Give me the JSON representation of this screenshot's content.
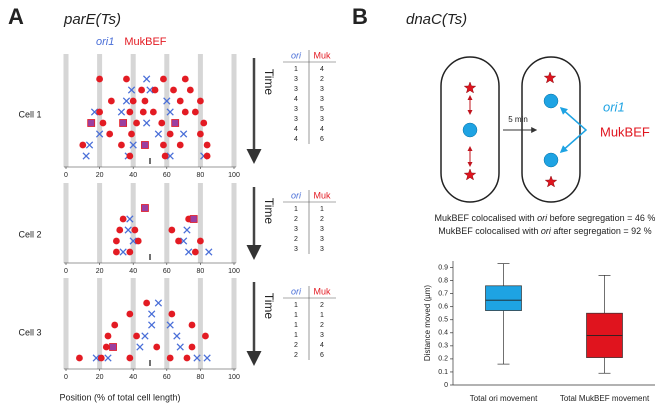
{
  "panels": [
    {
      "label": "A",
      "title": "parE(Ts)"
    },
    {
      "label": "B",
      "title": "dnaC(Ts)"
    }
  ],
  "diagram": {
    "interval": "5 min",
    "ori_label": "ori1",
    "muk_label": "MukBEF"
  },
  "stats": [
    {
      "parts": [
        "MukBEF colocalised with ",
        "ori",
        " before segregation = 46 %"
      ]
    },
    {
      "parts": [
        "MukBEF colocalised with ",
        "ori",
        " after segregation = 92 %"
      ]
    }
  ],
  "chart_data": [
    {
      "type": "scatter",
      "title": "Cell 1",
      "time_label": "Time",
      "xlim": [
        0,
        100
      ],
      "xticks": [
        0,
        20,
        40,
        60,
        80,
        100
      ],
      "ylim": [
        0,
        9
      ],
      "y_reversed": true,
      "grid": true,
      "table": {
        "columns": [
          "ori",
          "Muk"
        ],
        "rows": [
          [
            1,
            4
          ],
          [
            3,
            2
          ],
          [
            3,
            3
          ],
          [
            4,
            3
          ],
          [
            3,
            5
          ],
          [
            3,
            3
          ],
          [
            4,
            4
          ],
          [
            4,
            6
          ]
        ]
      },
      "series": [
        {
          "name": "ori1",
          "color": "#4a6fd8",
          "marker": "x",
          "x": [
            48,
            39,
            50,
            36,
            60,
            17,
            33,
            62,
            48,
            20,
            55,
            70,
            14,
            40,
            12,
            37,
            62,
            82
          ],
          "values": [
            1,
            2,
            2,
            3,
            3,
            4,
            4,
            4,
            5,
            6,
            6,
            6,
            7,
            7,
            8,
            8,
            8,
            8
          ]
        },
        {
          "name": "MukBEF",
          "color": "#e31b23",
          "marker": "circle",
          "x": [
            20,
            36,
            58,
            71,
            45,
            53,
            64,
            74,
            27,
            40,
            47,
            68,
            80,
            20,
            38,
            46,
            52,
            71,
            77,
            22,
            42,
            57,
            82,
            26,
            39,
            62,
            80,
            10,
            33,
            58,
            68,
            84,
            38,
            59,
            84
          ],
          "values": [
            1,
            1,
            1,
            1,
            2,
            2,
            2,
            2,
            3,
            3,
            3,
            3,
            3,
            4,
            4,
            4,
            4,
            4,
            4,
            5,
            5,
            5,
            5,
            6,
            6,
            6,
            6,
            7,
            7,
            7,
            7,
            7,
            8,
            8,
            8
          ]
        },
        {
          "color": "#9b3fa0",
          "marker": "square",
          "x": [
            15,
            34,
            65,
            47
          ],
          "values": [
            5,
            5,
            5,
            7
          ]
        }
      ]
    },
    {
      "type": "scatter",
      "title": "Cell 2",
      "time_label": "Time",
      "xlim": [
        0,
        100
      ],
      "xticks": [
        0,
        20,
        40,
        60,
        80,
        100
      ],
      "ylim": [
        0,
        6
      ],
      "y_reversed": true,
      "grid": true,
      "table": {
        "columns": [
          "ori",
          "Muk"
        ],
        "rows": [
          [
            1,
            1
          ],
          [
            2,
            2
          ],
          [
            3,
            3
          ],
          [
            2,
            3
          ],
          [
            3,
            3
          ]
        ]
      },
      "series": [
        {
          "color": "#4a6fd8",
          "marker": "x",
          "x": [
            38,
            37,
            72,
            40,
            70,
            34,
            73,
            85
          ],
          "values": [
            2,
            3,
            3,
            4,
            4,
            5,
            5,
            5
          ]
        },
        {
          "color": "#e31b23",
          "marker": "circle",
          "x": [
            34,
            73,
            32,
            41,
            63,
            30,
            43,
            67,
            80,
            30,
            38,
            77
          ],
          "values": [
            2,
            2,
            3,
            3,
            3,
            4,
            4,
            4,
            4,
            5,
            5,
            5
          ]
        },
        {
          "color": "#9b3fa0",
          "marker": "square",
          "x": [
            47,
            76
          ],
          "values": [
            1,
            2
          ]
        }
      ]
    },
    {
      "type": "scatter",
      "title": "Cell 3",
      "time_label": "Time",
      "xlabel": "Position (% of total cell length)",
      "xlim": [
        0,
        100
      ],
      "xticks": [
        0,
        20,
        40,
        60,
        80,
        100
      ],
      "ylim": [
        0,
        7
      ],
      "y_reversed": true,
      "grid": true,
      "table": {
        "columns": [
          "ori",
          "Muk"
        ],
        "rows": [
          [
            1,
            2
          ],
          [
            1,
            1
          ],
          [
            1,
            2
          ],
          [
            1,
            3
          ],
          [
            2,
            4
          ],
          [
            2,
            6
          ]
        ]
      },
      "series": [
        {
          "color": "#4a6fd8",
          "marker": "x",
          "x": [
            55,
            51,
            51,
            62,
            47,
            66,
            44,
            68,
            18,
            25,
            78,
            84
          ],
          "values": [
            1,
            2,
            3,
            3,
            4,
            4,
            5,
            5,
            6,
            6,
            6,
            6
          ]
        },
        {
          "color": "#e31b23",
          "marker": "circle",
          "x": [
            48,
            38,
            63,
            29,
            75,
            25,
            42,
            83,
            24,
            54,
            75,
            8,
            21,
            38,
            62,
            72
          ],
          "values": [
            1,
            2,
            2,
            3,
            3,
            4,
            4,
            4,
            5,
            5,
            5,
            6,
            6,
            6,
            6,
            6
          ]
        },
        {
          "color": "#9b3fa0",
          "marker": "square",
          "x": [
            28
          ],
          "values": [
            5
          ]
        }
      ]
    },
    {
      "type": "box",
      "ylabel": "Distance moved (µm)",
      "ylim": [
        0,
        0.95
      ],
      "yticks": [
        0,
        0.1,
        0.2,
        0.3,
        0.4,
        0.5,
        0.6,
        0.7,
        0.8,
        0.9
      ],
      "categories": [
        "Total ori movement",
        "Total MukBEF movement"
      ],
      "boxes": [
        {
          "color": "#1ea3e3",
          "whisker_low": 0.16,
          "q1": 0.57,
          "median": 0.65,
          "q3": 0.76,
          "whisker_high": 0.93
        },
        {
          "color": "#e0141e",
          "whisker_low": 0.09,
          "q1": 0.21,
          "median": 0.38,
          "q3": 0.55,
          "whisker_high": 0.84
        }
      ]
    }
  ]
}
